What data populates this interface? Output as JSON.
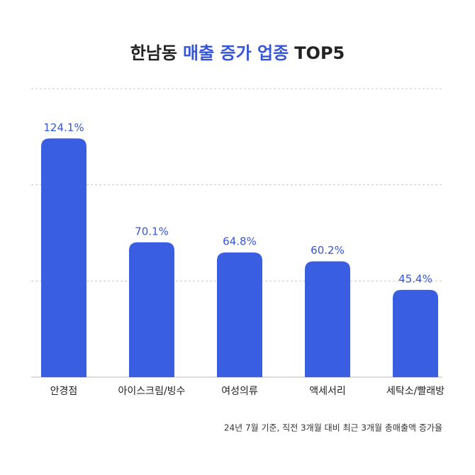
{
  "chart_data": {
    "type": "bar",
    "title": {
      "before": "한남동",
      "highlight": "매출 증가 업종",
      "after": "TOP5"
    },
    "categories": [
      "안경점",
      "아이스크림/빙수",
      "여성의류",
      "액세서리",
      "세탁소/빨래방"
    ],
    "values": [
      124.1,
      70.1,
      64.8,
      60.2,
      45.4
    ],
    "value_labels": [
      "124.1%",
      "70.1%",
      "64.8%",
      "60.2%",
      "45.4%"
    ],
    "color": "#3a5ee2",
    "ylim": [
      0,
      150
    ],
    "yticks": [
      50,
      100,
      150
    ],
    "grid": true,
    "footnote": "24년 7월 기준, 직전 3개월 대비 최근 3개월 총매출액 증가율"
  }
}
